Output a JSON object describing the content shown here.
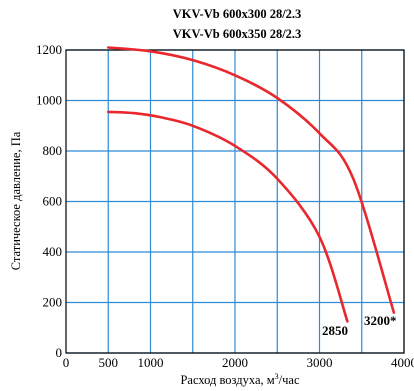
{
  "chart_data": {
    "type": "line",
    "title_lines": [
      "VKV-Vb 600x300 28/2.3",
      "VKV-Vb 600x350 28/2.3"
    ],
    "xlabel": "Расход воздуха, м",
    "xlabel_sup": "3",
    "xlabel_tail": "/час",
    "ylabel": "Статическое давление, Па",
    "xlim": [
      0,
      4000
    ],
    "ylim": [
      0,
      1200
    ],
    "x_ticks": [
      0,
      500,
      1000,
      2000,
      3000,
      4000
    ],
    "y_ticks": [
      0,
      200,
      400,
      600,
      800,
      1000,
      1200
    ],
    "x_tick_labels": [
      "0",
      "500",
      "1000",
      "2000",
      "3000",
      "4000"
    ],
    "y_tick_labels": [
      "0",
      "200",
      "400",
      "600",
      "800",
      "1000",
      "1200"
    ],
    "grid_x": [
      500,
      1000,
      1500,
      2000,
      2500,
      3000,
      3500,
      4000
    ],
    "grid_y": [
      0,
      200,
      400,
      600,
      800,
      1000,
      1200
    ],
    "grid": true,
    "colors": {
      "curve": "#e8282d",
      "grid": "#2e8bd6",
      "frame": "#000000"
    },
    "series": [
      {
        "x": [
          500,
          1000,
          1500,
          2000,
          2500,
          3000,
          3400,
          3880
        ],
        "y": [
          1210,
          1195,
          1160,
          1100,
          1010,
          870,
          690,
          160
        ]
      },
      {
        "x": [
          500,
          800,
          1100,
          1500,
          2000,
          2500,
          3000,
          3330
        ],
        "y": [
          955,
          950,
          935,
          900,
          820,
          690,
          460,
          125
        ]
      }
    ],
    "annotations": [
      "3200*",
      "2850"
    ]
  }
}
